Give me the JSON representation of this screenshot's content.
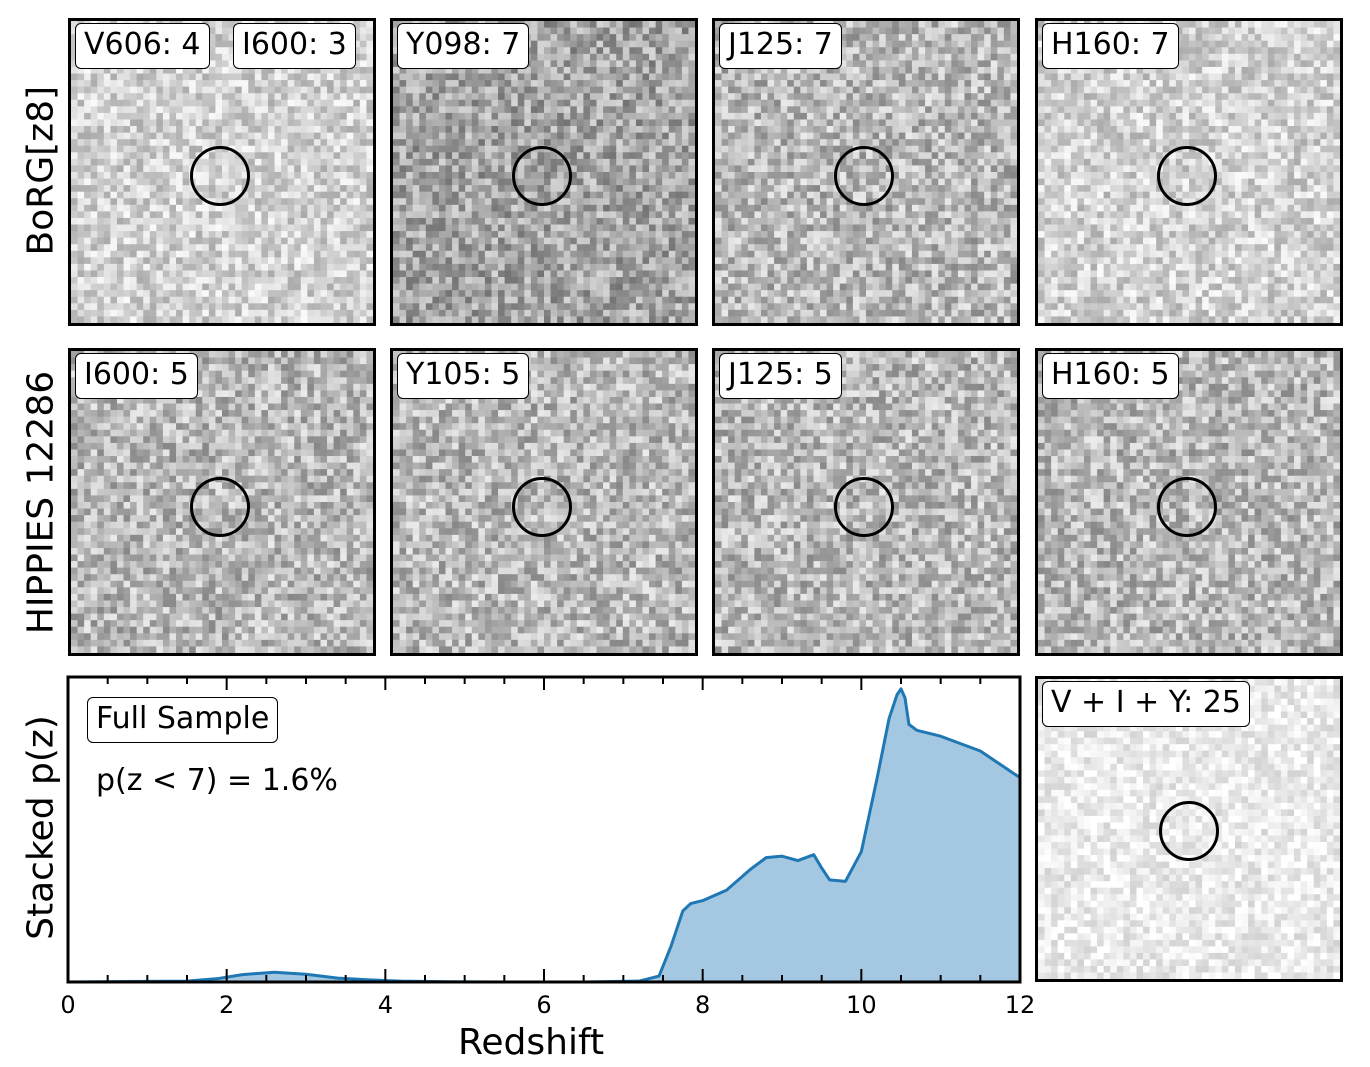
{
  "rows": [
    {
      "row_label": "BoRG[z8]",
      "panels": [
        {
          "labels": [
            "V606: 4",
            "I600: 3"
          ],
          "tone": "light"
        },
        {
          "labels": [
            "Y098: 7"
          ],
          "tone": "dark"
        },
        {
          "labels": [
            "J125: 7"
          ],
          "tone": "mid"
        },
        {
          "labels": [
            "H160: 7"
          ],
          "tone": "light"
        }
      ]
    },
    {
      "row_label": "HIPPIES 12286",
      "panels": [
        {
          "labels": [
            "I600: 5"
          ],
          "tone": "mid"
        },
        {
          "labels": [
            "Y105: 5"
          ],
          "tone": "mid"
        },
        {
          "labels": [
            "J125: 5"
          ],
          "tone": "mid"
        },
        {
          "labels": [
            "H160: 5"
          ],
          "tone": "mid"
        }
      ]
    }
  ],
  "stack_panel": {
    "label": "V + I + Y: 25"
  },
  "chart_data": {
    "type": "area",
    "ylabel": "Stacked p(z)",
    "xlabel": "Redshift",
    "xlim": [
      0,
      12
    ],
    "x_ticks": [
      "0",
      "2",
      "4",
      "6",
      "8",
      "10",
      "12"
    ],
    "sample_label": "Full Sample",
    "annotation": "p(z < 7) = 1.6%",
    "color": "#1f77b4",
    "fill_color": "#a4c8e1",
    "x": [
      0,
      1.5,
      1.9,
      2.2,
      2.6,
      3.0,
      3.4,
      3.8,
      4.2,
      4.8,
      5.5,
      6.5,
      7.2,
      7.45,
      7.6,
      7.75,
      7.85,
      8.0,
      8.3,
      8.6,
      8.8,
      9.0,
      9.2,
      9.4,
      9.5,
      9.6,
      9.8,
      10.0,
      10.2,
      10.35,
      10.45,
      10.5,
      10.55,
      10.6,
      10.7,
      11.0,
      11.5,
      12.0
    ],
    "y": [
      0,
      0.003,
      0.012,
      0.025,
      0.033,
      0.026,
      0.013,
      0.007,
      0.003,
      0.001,
      0,
      0,
      0.003,
      0.02,
      0.12,
      0.24,
      0.265,
      0.275,
      0.31,
      0.38,
      0.42,
      0.425,
      0.41,
      0.43,
      0.385,
      0.345,
      0.34,
      0.44,
      0.69,
      0.89,
      0.97,
      0.99,
      0.96,
      0.87,
      0.85,
      0.83,
      0.78,
      0.69
    ],
    "ylim": [
      0,
      1.03
    ]
  }
}
